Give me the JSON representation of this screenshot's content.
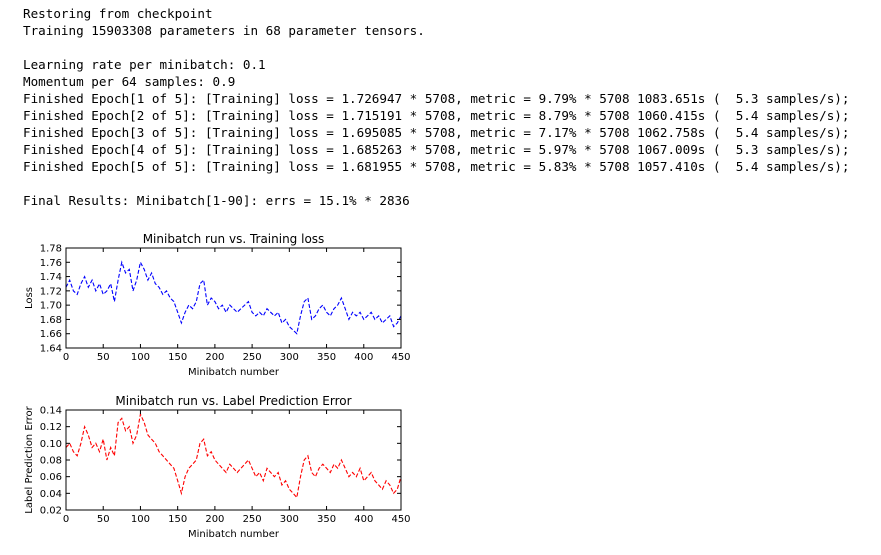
{
  "log": {
    "lines": [
      "Restoring from checkpoint",
      "Training 15903308 parameters in 68 parameter tensors.",
      "",
      "Learning rate per minibatch: 0.1",
      "Momentum per 64 samples: 0.9",
      "Finished Epoch[1 of 5]: [Training] loss = 1.726947 * 5708, metric = 9.79% * 5708 1083.651s (  5.3 samples/s);",
      "Finished Epoch[2 of 5]: [Training] loss = 1.715191 * 5708, metric = 8.79% * 5708 1060.415s (  5.4 samples/s);",
      "Finished Epoch[3 of 5]: [Training] loss = 1.695085 * 5708, metric = 7.17% * 5708 1062.758s (  5.4 samples/s);",
      "Finished Epoch[4 of 5]: [Training] loss = 1.685263 * 5708, metric = 5.97% * 5708 1067.009s (  5.3 samples/s);",
      "Finished Epoch[5 of 5]: [Training] loss = 1.681955 * 5708, metric = 5.83% * 5708 1057.410s (  5.4 samples/s);",
      "",
      "Final Results: Minibatch[1-90]: errs = 15.1% * 2836"
    ]
  },
  "chart_data": [
    {
      "type": "line",
      "title": "Minibatch run vs. Training loss",
      "xlabel": "Minibatch number",
      "ylabel": "Loss",
      "xlim": [
        0,
        450
      ],
      "ylim": [
        1.64,
        1.78
      ],
      "xticks": [
        "0",
        "50",
        "100",
        "150",
        "200",
        "250",
        "300",
        "350",
        "400",
        "450"
      ],
      "yticks": [
        "1.64",
        "1.66",
        "1.68",
        "1.70",
        "1.72",
        "1.74",
        "1.76",
        "1.78"
      ],
      "line_style": "dashed",
      "color": "#0000ff",
      "grid": false,
      "x": [
        0,
        5,
        10,
        15,
        20,
        25,
        30,
        35,
        40,
        45,
        50,
        55,
        60,
        65,
        70,
        75,
        80,
        85,
        90,
        95,
        100,
        105,
        110,
        115,
        120,
        125,
        130,
        135,
        140,
        145,
        150,
        155,
        160,
        165,
        170,
        175,
        180,
        185,
        190,
        195,
        200,
        205,
        210,
        215,
        220,
        225,
        230,
        235,
        240,
        245,
        250,
        255,
        260,
        265,
        270,
        275,
        280,
        285,
        290,
        295,
        300,
        305,
        310,
        315,
        320,
        325,
        330,
        335,
        340,
        345,
        350,
        355,
        360,
        365,
        370,
        375,
        380,
        385,
        390,
        395,
        400,
        405,
        410,
        415,
        420,
        425,
        430,
        435,
        440,
        445,
        450
      ],
      "values": [
        1.725,
        1.735,
        1.72,
        1.715,
        1.73,
        1.74,
        1.725,
        1.735,
        1.72,
        1.73,
        1.715,
        1.72,
        1.73,
        1.705,
        1.735,
        1.76,
        1.745,
        1.75,
        1.72,
        1.735,
        1.76,
        1.75,
        1.735,
        1.745,
        1.73,
        1.725,
        1.715,
        1.72,
        1.71,
        1.705,
        1.69,
        1.675,
        1.69,
        1.7,
        1.695,
        1.705,
        1.73,
        1.735,
        1.7,
        1.71,
        1.705,
        1.695,
        1.7,
        1.69,
        1.7,
        1.695,
        1.69,
        1.695,
        1.7,
        1.705,
        1.69,
        1.685,
        1.69,
        1.685,
        1.695,
        1.69,
        1.685,
        1.69,
        1.675,
        1.68,
        1.67,
        1.665,
        1.66,
        1.685,
        1.705,
        1.71,
        1.68,
        1.685,
        1.695,
        1.7,
        1.69,
        1.685,
        1.695,
        1.7,
        1.71,
        1.695,
        1.68,
        1.69,
        1.685,
        1.69,
        1.68,
        1.685,
        1.69,
        1.68,
        1.685,
        1.675,
        1.68,
        1.685,
        1.67,
        1.675,
        1.685
      ]
    },
    {
      "type": "line",
      "title": "Minibatch run vs. Label Prediction Error",
      "xlabel": "Minibatch number",
      "ylabel": "Label Prediction Error",
      "xlim": [
        0,
        450
      ],
      "ylim": [
        0.02,
        0.14
      ],
      "xticks": [
        "0",
        "50",
        "100",
        "150",
        "200",
        "250",
        "300",
        "350",
        "400",
        "450"
      ],
      "yticks": [
        "0.02",
        "0.04",
        "0.06",
        "0.08",
        "0.10",
        "0.12",
        "0.14"
      ],
      "line_style": "dashed",
      "color": "#ff0000",
      "grid": false,
      "x": [
        0,
        5,
        10,
        15,
        20,
        25,
        30,
        35,
        40,
        45,
        50,
        55,
        60,
        65,
        70,
        75,
        80,
        85,
        90,
        95,
        100,
        105,
        110,
        115,
        120,
        125,
        130,
        135,
        140,
        145,
        150,
        155,
        160,
        165,
        170,
        175,
        180,
        185,
        190,
        195,
        200,
        205,
        210,
        215,
        220,
        225,
        230,
        235,
        240,
        245,
        250,
        255,
        260,
        265,
        270,
        275,
        280,
        285,
        290,
        295,
        300,
        305,
        310,
        315,
        320,
        325,
        330,
        335,
        340,
        345,
        350,
        355,
        360,
        365,
        370,
        375,
        380,
        385,
        390,
        395,
        400,
        405,
        410,
        415,
        420,
        425,
        430,
        435,
        440,
        445,
        450
      ],
      "values": [
        0.095,
        0.1,
        0.09,
        0.085,
        0.1,
        0.12,
        0.11,
        0.095,
        0.1,
        0.09,
        0.105,
        0.08,
        0.095,
        0.085,
        0.125,
        0.13,
        0.115,
        0.12,
        0.1,
        0.11,
        0.135,
        0.125,
        0.11,
        0.105,
        0.1,
        0.09,
        0.085,
        0.08,
        0.075,
        0.07,
        0.055,
        0.04,
        0.06,
        0.07,
        0.075,
        0.08,
        0.1,
        0.105,
        0.085,
        0.09,
        0.08,
        0.075,
        0.07,
        0.065,
        0.075,
        0.07,
        0.065,
        0.07,
        0.075,
        0.08,
        0.07,
        0.06,
        0.065,
        0.055,
        0.07,
        0.065,
        0.06,
        0.065,
        0.05,
        0.055,
        0.045,
        0.04,
        0.035,
        0.06,
        0.08,
        0.085,
        0.065,
        0.06,
        0.07,
        0.075,
        0.07,
        0.065,
        0.075,
        0.07,
        0.08,
        0.07,
        0.06,
        0.065,
        0.06,
        0.07,
        0.055,
        0.06,
        0.065,
        0.055,
        0.05,
        0.045,
        0.055,
        0.05,
        0.04,
        0.045,
        0.06
      ]
    }
  ]
}
